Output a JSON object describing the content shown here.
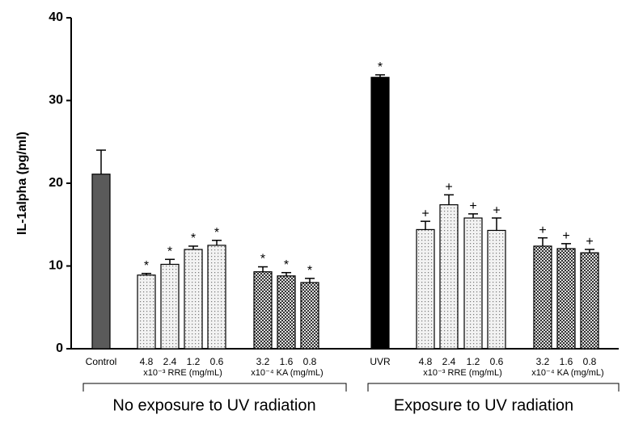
{
  "chart_data": {
    "type": "bar",
    "y_label": "IL-1alpha (pg/ml)",
    "categories": [
      "Control",
      "4.8",
      "2.4",
      "1.2",
      "0.6",
      "3.2",
      "1.6",
      "0.8",
      "UVR",
      "4.8",
      "2.4",
      "1.2",
      "0.6",
      "3.2",
      "1.6",
      "0.8"
    ],
    "values": [
      21.1,
      8.9,
      10.2,
      12.0,
      12.5,
      9.3,
      8.8,
      8.0,
      32.8,
      14.4,
      17.4,
      15.8,
      14.3,
      12.4,
      12.1,
      11.6
    ],
    "errors": [
      2.9,
      0.2,
      0.6,
      0.4,
      0.6,
      0.6,
      0.4,
      0.5,
      0.3,
      1.0,
      1.2,
      0.5,
      1.5,
      1.0,
      0.6,
      0.4
    ],
    "markers": [
      null,
      "*",
      "*",
      "*",
      "*",
      "*",
      "*",
      "*",
      "*",
      "+",
      "+",
      "+",
      "+",
      "+",
      "+",
      "+"
    ],
    "fill_patterns": [
      "gray",
      "dots",
      "dots",
      "dots",
      "dots",
      "checks",
      "checks",
      "checks",
      "black",
      "dots",
      "dots",
      "dots",
      "dots",
      "checks",
      "checks",
      "checks"
    ],
    "subgroups": [
      "x10⁻³ RRE (mg/mL)",
      "x10⁻⁴ KA (mg/mL)",
      "x10⁻³ RRE (mg/mL)",
      "x10⁻⁴ KA (mg/mL)"
    ],
    "groups": [
      "No exposure to UV radiation",
      "Exposure to UV radiation"
    ],
    "ylim": [
      0,
      40
    ],
    "yticks": [
      0,
      10,
      20,
      30,
      40
    ]
  }
}
